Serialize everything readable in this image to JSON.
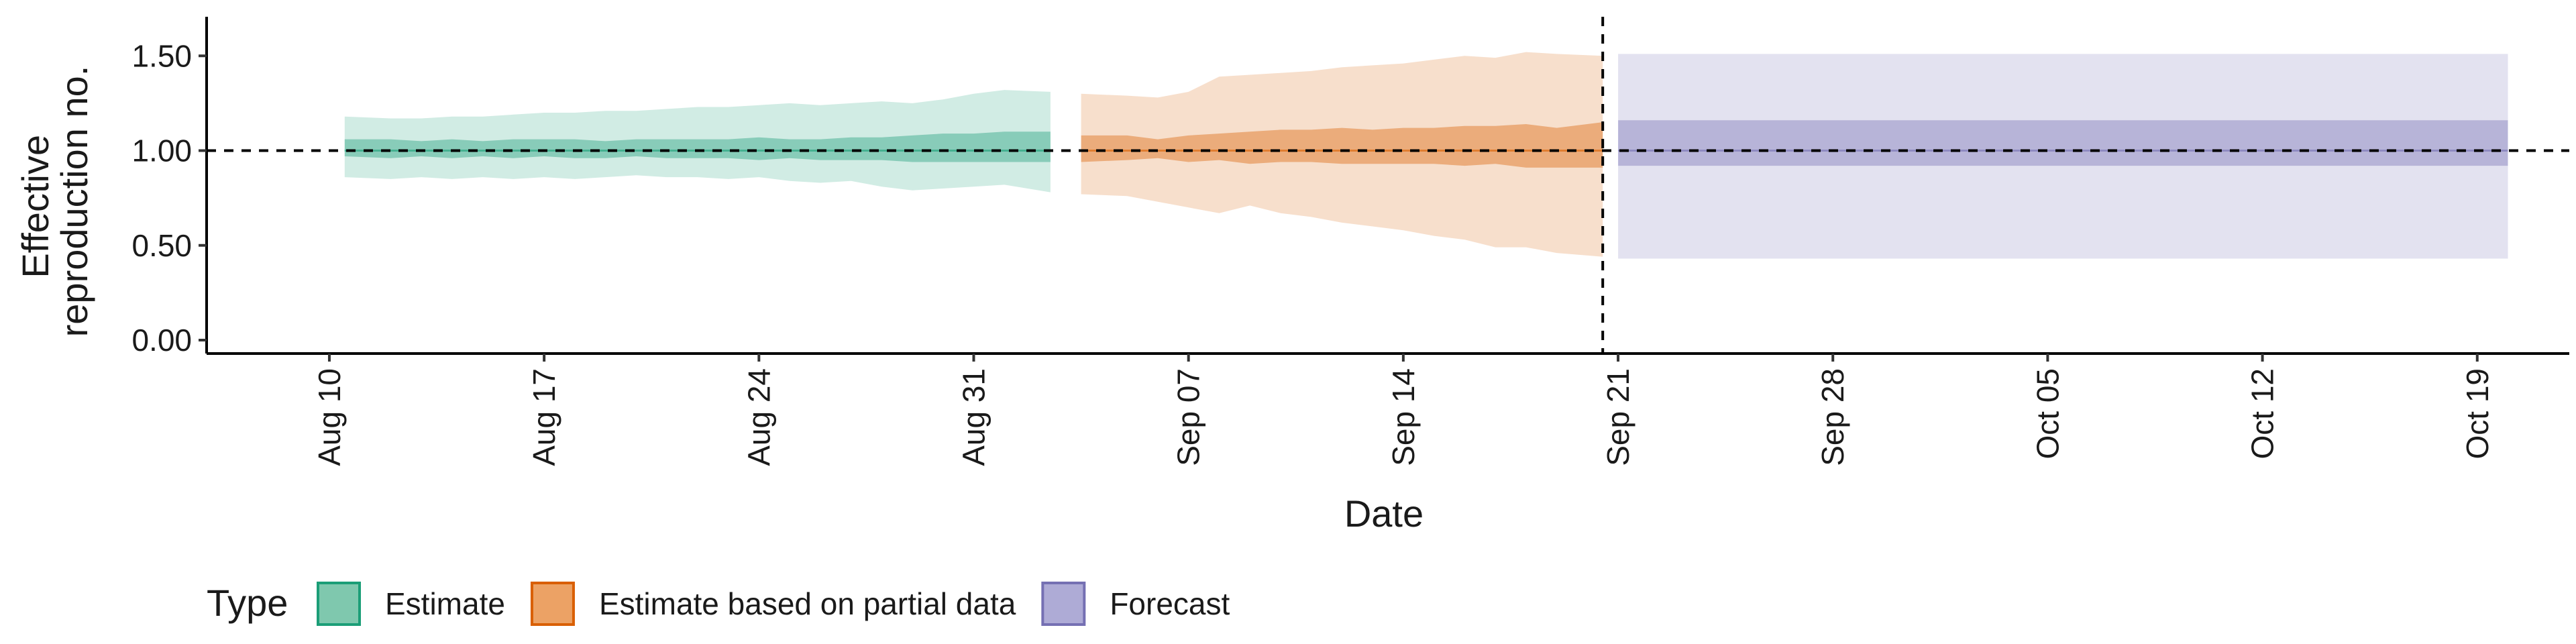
{
  "chart_data": {
    "type": "area",
    "title": "",
    "xlabel": "Date",
    "ylabel_lines": [
      "Effective",
      "reproduction no."
    ],
    "ylim": [
      0,
      1.6
    ],
    "yticks": [
      0.0,
      0.5,
      1.0,
      1.5
    ],
    "ytick_labels": [
      "0.00",
      "0.50",
      "1.00",
      "1.50"
    ],
    "xlim": [
      "2020-08-06",
      "2020-10-22"
    ],
    "xticks": [
      "2020-08-10",
      "2020-08-17",
      "2020-08-24",
      "2020-08-31",
      "2020-09-07",
      "2020-09-14",
      "2020-09-21",
      "2020-09-28",
      "2020-10-05",
      "2020-10-12",
      "2020-10-19"
    ],
    "xtick_labels": [
      "Aug 10",
      "Aug 17",
      "Aug 24",
      "Aug 31",
      "Sep 07",
      "Sep 14",
      "Sep 21",
      "Sep 28",
      "Oct 05",
      "Oct 12",
      "Oct 19"
    ],
    "reference_line_y": 1.0,
    "vertical_line_x": "2020-09-20",
    "grid": false,
    "legend_position": "bottom-left",
    "series": [
      {
        "name": "Estimate",
        "color": "#1b9e77",
        "x": [
          "2020-08-11",
          "2020-08-12",
          "2020-08-13",
          "2020-08-14",
          "2020-08-15",
          "2020-08-16",
          "2020-08-17",
          "2020-08-18",
          "2020-08-19",
          "2020-08-20",
          "2020-08-21",
          "2020-08-22",
          "2020-08-23",
          "2020-08-24",
          "2020-08-25",
          "2020-08-26",
          "2020-08-27",
          "2020-08-28",
          "2020-08-29",
          "2020-08-30",
          "2020-08-31",
          "2020-09-01",
          "2020-09-02"
        ],
        "median": [
          1.0,
          1.0,
          1.0,
          1.0,
          1.0,
          1.0,
          1.0,
          1.0,
          1.0,
          1.0,
          1.0,
          1.0,
          1.0,
          1.0,
          1.0,
          1.0,
          1.0,
          1.0,
          1.0,
          1.0,
          1.0,
          1.0,
          1.0
        ],
        "lower_50": [
          0.97,
          0.96,
          0.97,
          0.96,
          0.97,
          0.96,
          0.97,
          0.96,
          0.96,
          0.97,
          0.96,
          0.96,
          0.96,
          0.95,
          0.96,
          0.95,
          0.95,
          0.95,
          0.94,
          0.94,
          0.94,
          0.94,
          0.94
        ],
        "upper_50": [
          1.06,
          1.06,
          1.05,
          1.06,
          1.05,
          1.06,
          1.06,
          1.06,
          1.05,
          1.06,
          1.06,
          1.06,
          1.06,
          1.07,
          1.06,
          1.06,
          1.07,
          1.07,
          1.08,
          1.09,
          1.09,
          1.1,
          1.1
        ],
        "lower_90": [
          0.86,
          0.85,
          0.86,
          0.85,
          0.86,
          0.85,
          0.86,
          0.85,
          0.86,
          0.87,
          0.86,
          0.86,
          0.85,
          0.86,
          0.84,
          0.83,
          0.84,
          0.81,
          0.79,
          0.8,
          0.81,
          0.82,
          0.78
        ],
        "upper_90": [
          1.18,
          1.17,
          1.17,
          1.18,
          1.18,
          1.19,
          1.2,
          1.2,
          1.21,
          1.21,
          1.22,
          1.23,
          1.23,
          1.24,
          1.25,
          1.24,
          1.25,
          1.26,
          1.25,
          1.27,
          1.3,
          1.32,
          1.31
        ]
      },
      {
        "name": "Estimate based on partial data",
        "color": "#d95f02",
        "x": [
          "2020-09-04",
          "2020-09-05",
          "2020-09-06",
          "2020-09-07",
          "2020-09-08",
          "2020-09-09",
          "2020-09-10",
          "2020-09-11",
          "2020-09-12",
          "2020-09-13",
          "2020-09-14",
          "2020-09-15",
          "2020-09-16",
          "2020-09-17",
          "2020-09-18",
          "2020-09-19",
          "2020-09-20"
        ],
        "median": [
          1.0,
          1.0,
          1.0,
          1.0,
          1.0,
          1.0,
          1.0,
          1.0,
          1.0,
          1.0,
          1.0,
          1.0,
          1.0,
          1.0,
          1.0,
          1.0,
          1.0
        ],
        "lower_50": [
          0.94,
          0.95,
          0.96,
          0.94,
          0.95,
          0.93,
          0.94,
          0.94,
          0.93,
          0.93,
          0.93,
          0.93,
          0.92,
          0.93,
          0.91,
          0.91,
          0.91
        ],
        "upper_50": [
          1.08,
          1.08,
          1.06,
          1.08,
          1.09,
          1.1,
          1.11,
          1.11,
          1.12,
          1.11,
          1.12,
          1.12,
          1.13,
          1.13,
          1.14,
          1.12,
          1.15
        ],
        "lower_90": [
          0.77,
          0.76,
          0.73,
          0.7,
          0.67,
          0.71,
          0.67,
          0.65,
          0.62,
          0.6,
          0.58,
          0.55,
          0.53,
          0.49,
          0.49,
          0.46,
          0.44
        ],
        "upper_90": [
          1.3,
          1.29,
          1.28,
          1.31,
          1.39,
          1.4,
          1.41,
          1.42,
          1.44,
          1.45,
          1.46,
          1.48,
          1.5,
          1.49,
          1.52,
          1.51,
          1.5
        ]
      },
      {
        "name": "Forecast",
        "color": "#7570b3",
        "x": [
          "2020-09-21",
          "2020-10-20"
        ],
        "median": [
          1.0,
          1.0
        ],
        "lower_50": [
          0.92,
          0.92
        ],
        "upper_50": [
          1.16,
          1.16
        ],
        "lower_90": [
          0.43,
          0.43
        ],
        "upper_90": [
          1.51,
          1.51
        ]
      }
    ],
    "legend": {
      "title": "Type",
      "items": [
        {
          "label": "Estimate",
          "fill": "#7fc8ae",
          "stroke": "#1b9e77"
        },
        {
          "label": "Estimate based on partial data",
          "fill": "#eca265",
          "stroke": "#d95f02"
        },
        {
          "label": "Forecast",
          "fill": "#aeabd6",
          "stroke": "#7570b3"
        }
      ]
    }
  }
}
